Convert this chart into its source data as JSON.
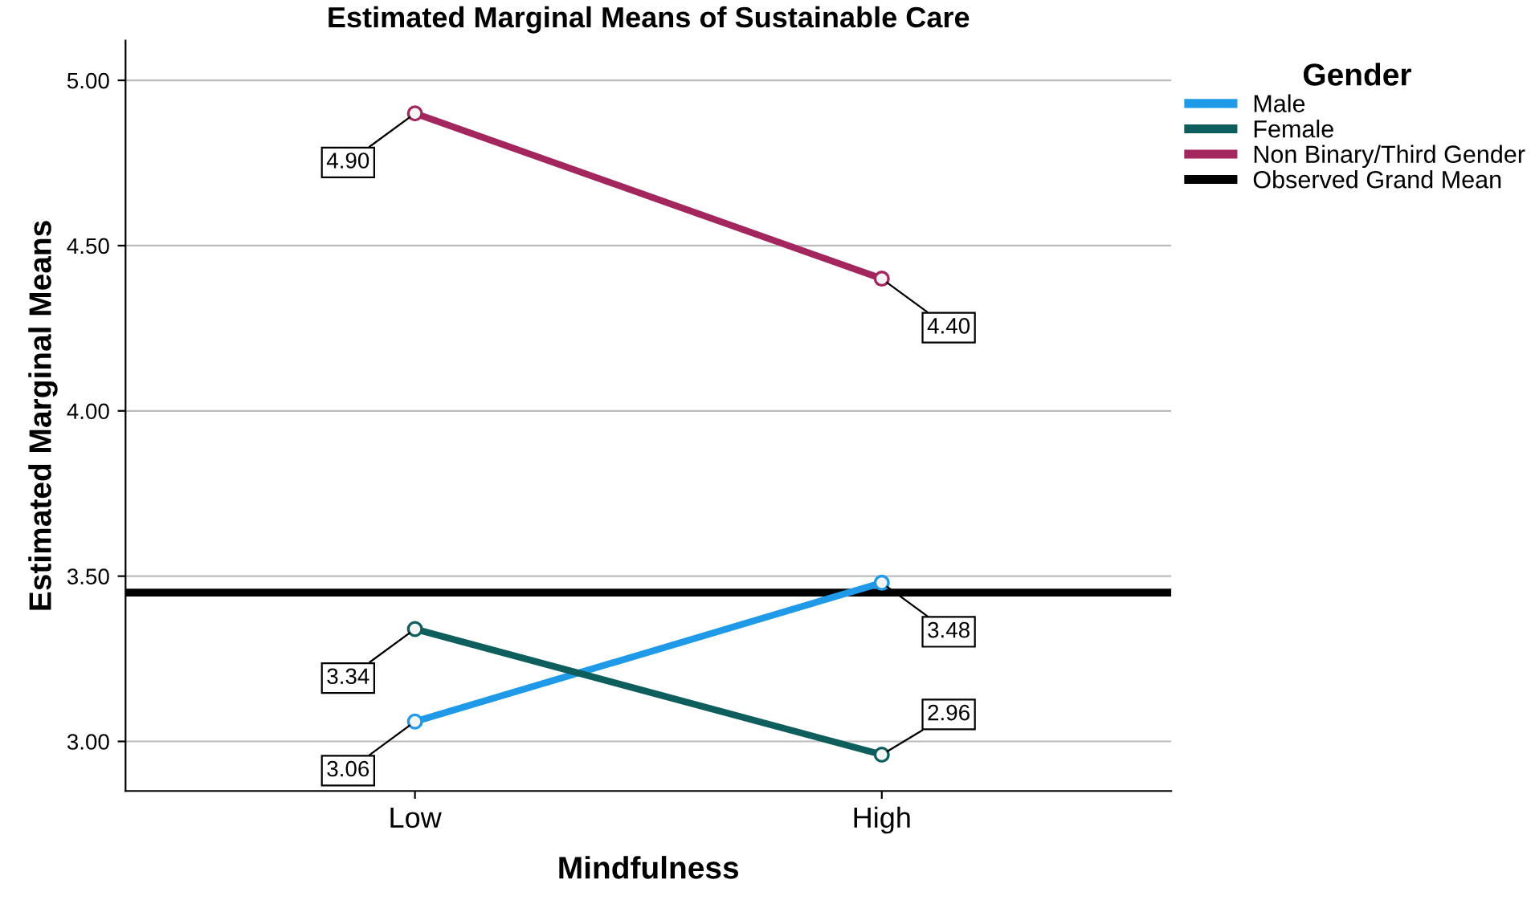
{
  "chart_data": {
    "type": "line",
    "title": "Estimated Marginal Means of Sustainable Care",
    "xlabel": "Mindfulness",
    "ylabel": "Estimated Marginal Means",
    "legend_title": "Gender",
    "categories": [
      "Low",
      "High"
    ],
    "series": [
      {
        "name": "Male",
        "color": "#1f9ae8",
        "values": [
          3.06,
          3.48
        ],
        "value_labels": [
          "3.06",
          "3.48"
        ]
      },
      {
        "name": "Female",
        "color": "#0f5e5e",
        "values": [
          3.34,
          2.96
        ],
        "value_labels": [
          "3.34",
          "2.96"
        ]
      },
      {
        "name": "Non Binary/Third Gender",
        "color": "#a3265e",
        "values": [
          4.9,
          4.4
        ],
        "value_labels": [
          "4.90",
          "4.40"
        ]
      }
    ],
    "ref_lines": [
      {
        "axis": "y",
        "value": 3.45,
        "label": "Observed Grand Mean",
        "color": "#000000"
      }
    ],
    "ylim": [
      2.85,
      5.12
    ],
    "yticks": [
      {
        "value": 3.0,
        "label": "3.00"
      },
      {
        "value": 3.5,
        "label": "3.50"
      },
      {
        "value": 4.0,
        "label": "4.00"
      },
      {
        "value": 4.5,
        "label": "4.50"
      },
      {
        "value": 5.0,
        "label": "5.00"
      }
    ],
    "grid": "y",
    "legend": "top right",
    "marker": "circle"
  }
}
